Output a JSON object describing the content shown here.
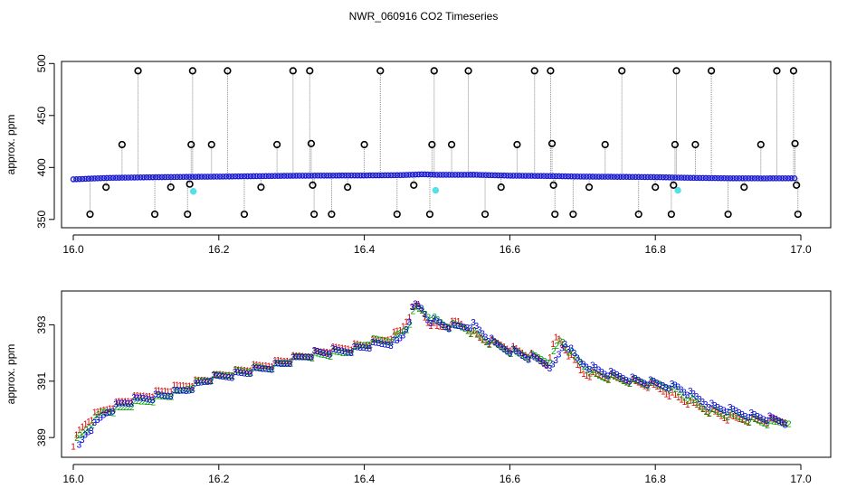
{
  "title": "NWR_060916  CO2 Timeseries",
  "colors": {
    "series_1": "#dd0000",
    "series_2": "#00a000",
    "series_3": "#0000dd",
    "outlier": "#000000",
    "flagged": "#55e0e8",
    "spike_line": "#8a8a8a"
  },
  "chart_data": [
    {
      "type": "scatter",
      "title": "NWR_060916  CO2 Timeseries",
      "xlabel": "",
      "ylabel": "approx. ppm",
      "xlim": [
        16.0,
        17.0
      ],
      "ylim": [
        342,
        502
      ],
      "xticks": [
        "16.0",
        "16.2",
        "16.4",
        "16.6",
        "16.8",
        "17.0"
      ],
      "yticks": [
        "350",
        "400",
        "450",
        "500"
      ],
      "baseline": {
        "x": [
          16.0,
          16.05,
          16.1,
          16.15,
          16.2,
          16.25,
          16.3,
          16.35,
          16.4,
          16.45,
          16.48,
          16.5,
          16.55,
          16.6,
          16.65,
          16.7,
          16.75,
          16.8,
          16.85,
          16.9,
          16.95,
          16.99
        ],
        "y": [
          388.6,
          390.0,
          390.5,
          390.9,
          391.2,
          391.6,
          392.0,
          392.2,
          392.3,
          392.6,
          393.4,
          392.9,
          393.0,
          392.1,
          391.8,
          391.2,
          391.0,
          390.7,
          390.0,
          389.6,
          389.5,
          389.6
        ]
      },
      "outliers": [
        {
          "x": 16.023,
          "y": 355
        },
        {
          "x": 16.045,
          "y": 381
        },
        {
          "x": 16.067,
          "y": 422
        },
        {
          "x": 16.089,
          "y": 493
        },
        {
          "x": 16.112,
          "y": 355
        },
        {
          "x": 16.134,
          "y": 381
        },
        {
          "x": 16.157,
          "y": 355
        },
        {
          "x": 16.16,
          "y": 384
        },
        {
          "x": 16.162,
          "y": 422
        },
        {
          "x": 16.164,
          "y": 493
        },
        {
          "x": 16.19,
          "y": 422
        },
        {
          "x": 16.212,
          "y": 493
        },
        {
          "x": 16.235,
          "y": 355
        },
        {
          "x": 16.258,
          "y": 381
        },
        {
          "x": 16.28,
          "y": 422
        },
        {
          "x": 16.302,
          "y": 493
        },
        {
          "x": 16.325,
          "y": 493
        },
        {
          "x": 16.327,
          "y": 423
        },
        {
          "x": 16.329,
          "y": 383
        },
        {
          "x": 16.331,
          "y": 355
        },
        {
          "x": 16.355,
          "y": 355
        },
        {
          "x": 16.377,
          "y": 381
        },
        {
          "x": 16.4,
          "y": 422
        },
        {
          "x": 16.422,
          "y": 493
        },
        {
          "x": 16.445,
          "y": 355
        },
        {
          "x": 16.468,
          "y": 383
        },
        {
          "x": 16.49,
          "y": 355
        },
        {
          "x": 16.493,
          "y": 422
        },
        {
          "x": 16.496,
          "y": 493
        },
        {
          "x": 16.52,
          "y": 422
        },
        {
          "x": 16.543,
          "y": 493
        },
        {
          "x": 16.566,
          "y": 355
        },
        {
          "x": 16.588,
          "y": 381
        },
        {
          "x": 16.61,
          "y": 422
        },
        {
          "x": 16.634,
          "y": 493
        },
        {
          "x": 16.656,
          "y": 493
        },
        {
          "x": 16.658,
          "y": 423
        },
        {
          "x": 16.66,
          "y": 383
        },
        {
          "x": 16.662,
          "y": 355
        },
        {
          "x": 16.687,
          "y": 355
        },
        {
          "x": 16.709,
          "y": 381
        },
        {
          "x": 16.731,
          "y": 422
        },
        {
          "x": 16.754,
          "y": 493
        },
        {
          "x": 16.777,
          "y": 355
        },
        {
          "x": 16.8,
          "y": 381
        },
        {
          "x": 16.822,
          "y": 355
        },
        {
          "x": 16.825,
          "y": 383
        },
        {
          "x": 16.827,
          "y": 422
        },
        {
          "x": 16.829,
          "y": 493
        },
        {
          "x": 16.855,
          "y": 422
        },
        {
          "x": 16.877,
          "y": 493
        },
        {
          "x": 16.9,
          "y": 355
        },
        {
          "x": 16.922,
          "y": 381
        },
        {
          "x": 16.945,
          "y": 422
        },
        {
          "x": 16.967,
          "y": 493
        },
        {
          "x": 16.99,
          "y": 493
        },
        {
          "x": 16.992,
          "y": 423
        },
        {
          "x": 16.994,
          "y": 383
        },
        {
          "x": 16.996,
          "y": 355
        }
      ],
      "flagged": [
        {
          "x": 16.165,
          "y": 377
        },
        {
          "x": 16.498,
          "y": 378
        },
        {
          "x": 16.831,
          "y": 378
        }
      ]
    },
    {
      "type": "scatter",
      "title": "",
      "xlabel": "",
      "ylabel": "approx. ppm",
      "xlim": [
        16.0,
        17.0
      ],
      "ylim": [
        388.3,
        394.2
      ],
      "xticks": [
        "16.0",
        "16.2",
        "16.4",
        "16.6",
        "16.8",
        "17.0"
      ],
      "yticks": [
        "389",
        "391",
        "393"
      ],
      "markers": [
        "1",
        "2",
        "3"
      ],
      "series": [
        {
          "name": "1",
          "x": [
            16.0,
            16.01,
            16.02,
            16.03,
            16.05,
            16.07,
            16.1,
            16.13,
            16.16,
            16.2,
            16.25,
            16.3,
            16.35,
            16.4,
            16.43,
            16.45,
            16.465,
            16.475,
            16.485,
            16.5,
            16.53,
            16.56,
            16.6,
            16.63,
            16.65,
            16.665,
            16.68,
            16.7,
            16.75,
            16.8,
            16.85,
            16.9,
            16.95,
            16.98
          ],
          "y": [
            388.8,
            389.3,
            389.6,
            389.8,
            390.1,
            390.3,
            390.5,
            390.7,
            390.9,
            391.2,
            391.5,
            391.8,
            392.1,
            392.3,
            392.5,
            392.8,
            393.5,
            393.7,
            393.2,
            392.9,
            393.1,
            392.5,
            392.2,
            391.9,
            391.6,
            392.6,
            392.0,
            391.3,
            391.1,
            390.8,
            390.2,
            389.7,
            389.6,
            389.6
          ]
        },
        {
          "name": "2",
          "x": [
            16.005,
            16.015,
            16.025,
            16.04,
            16.06,
            16.085,
            16.115,
            16.145,
            16.175,
            16.22,
            16.27,
            16.32,
            16.37,
            16.41,
            16.44,
            16.46,
            16.47,
            16.48,
            16.49,
            16.51,
            16.54,
            16.57,
            16.61,
            16.64,
            16.655,
            16.67,
            16.69,
            16.72,
            16.77,
            16.82,
            16.87,
            16.92,
            16.96,
            16.985
          ],
          "y": [
            388.9,
            389.2,
            389.5,
            389.9,
            390.0,
            390.2,
            390.4,
            390.6,
            391.0,
            391.3,
            391.5,
            391.9,
            392.0,
            392.4,
            392.5,
            392.9,
            393.6,
            393.5,
            393.3,
            393.0,
            392.9,
            392.4,
            392.0,
            391.8,
            391.7,
            392.5,
            391.8,
            391.2,
            391.0,
            390.8,
            390.0,
            389.7,
            389.5,
            389.6
          ]
        },
        {
          "name": "3",
          "x": [
            16.008,
            16.018,
            16.028,
            16.045,
            16.065,
            16.095,
            16.125,
            16.155,
            16.19,
            16.235,
            16.285,
            16.33,
            16.38,
            16.415,
            16.445,
            16.455,
            16.468,
            16.478,
            16.488,
            16.52,
            16.55,
            16.58,
            16.62,
            16.645,
            16.66,
            16.675,
            16.695,
            16.73,
            16.78,
            16.83,
            16.88,
            16.93,
            16.97,
            16.982
          ],
          "y": [
            388.7,
            389.2,
            389.4,
            389.9,
            390.2,
            390.4,
            390.5,
            390.7,
            391.1,
            391.3,
            391.6,
            392.0,
            392.1,
            392.3,
            392.4,
            392.7,
            393.7,
            393.6,
            393.2,
            392.9,
            393.0,
            392.3,
            391.9,
            391.7,
            391.5,
            392.4,
            391.7,
            391.3,
            391.0,
            390.8,
            390.1,
            389.8,
            389.6,
            389.5
          ]
        }
      ]
    }
  ]
}
